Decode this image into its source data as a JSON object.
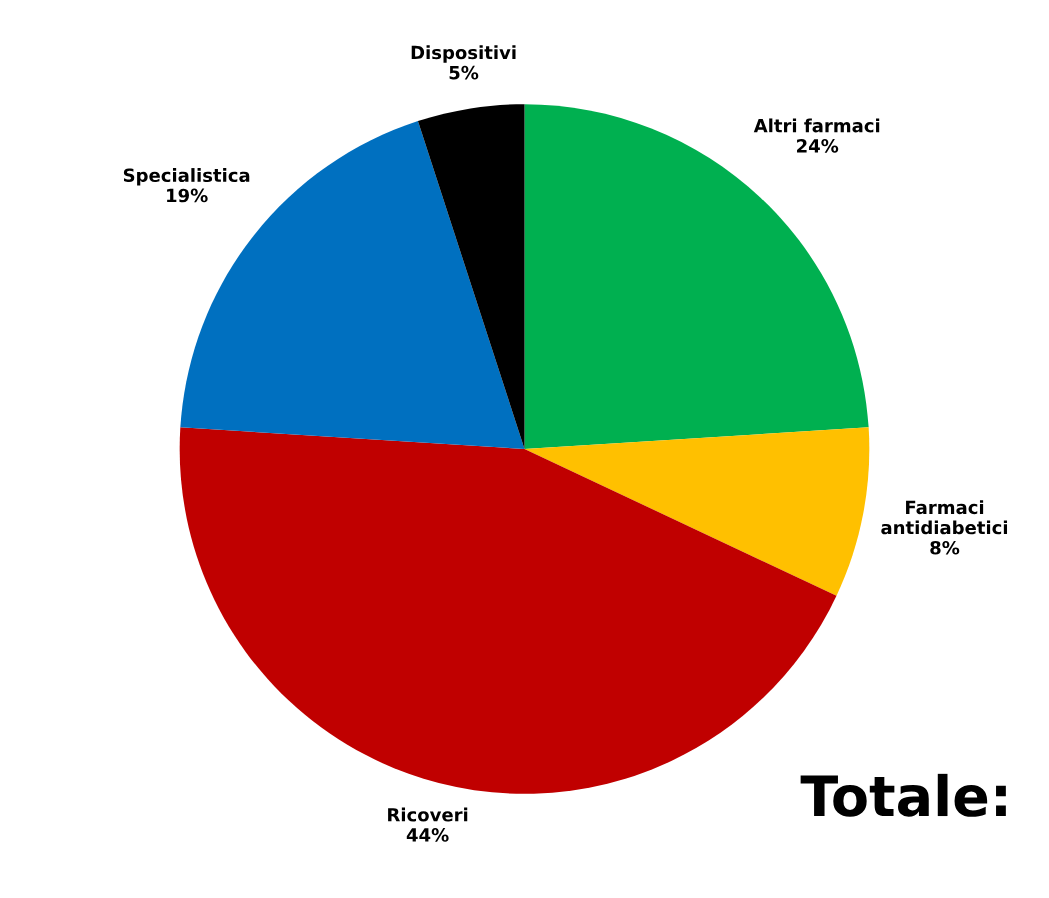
{
  "chart_data": {
    "type": "pie",
    "categories": [
      "Altri farmaci",
      "Farmaci\nantidiabetici",
      "Ricoveri",
      "Specialistica",
      "Dispositivi"
    ],
    "values": [
      24,
      8,
      44,
      19,
      5
    ],
    "colors": [
      "#00b050",
      "#ffc000",
      "#c00000",
      "#0070c0",
      "#000000"
    ],
    "value_labels": [
      "24%",
      "8%",
      "44%",
      "19%",
      "5%"
    ],
    "annotations": [
      "Totale:"
    ]
  }
}
